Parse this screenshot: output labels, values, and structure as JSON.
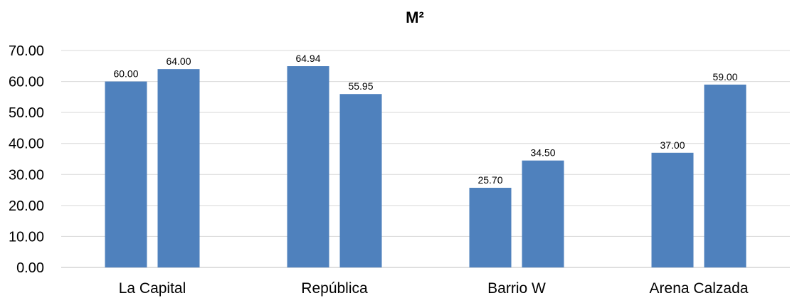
{
  "chart_data": {
    "type": "bar",
    "title": "M²",
    "categories": [
      "La Capital",
      "República",
      "Barrio W",
      "Arena Calzada"
    ],
    "series": [
      {
        "values": [
          60.0,
          64.94,
          25.7,
          37.0
        ]
      },
      {
        "values": [
          64.0,
          55.95,
          34.5,
          59.0
        ]
      }
    ],
    "data_labels": [
      [
        "60.00",
        "64.94",
        "25.70",
        "37.00"
      ],
      [
        "64.00",
        "55.95",
        "34.50",
        "59.00"
      ]
    ],
    "y_ticks": [
      "0.00",
      "10.00",
      "20.00",
      "30.00",
      "40.00",
      "50.00",
      "60.00",
      "70.00"
    ],
    "ylim": [
      0,
      70
    ],
    "grid": true,
    "legend": "none",
    "bar_color": "#4f81bd"
  }
}
